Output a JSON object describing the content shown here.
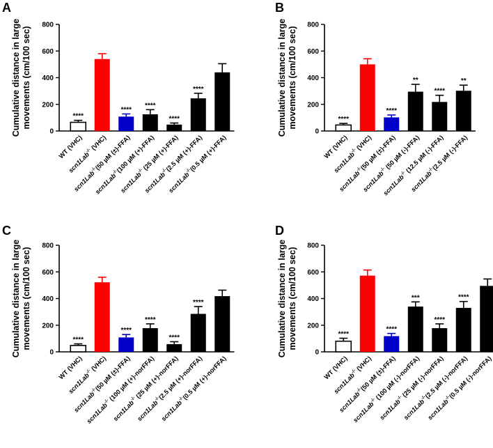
{
  "chart_data": [
    {
      "type": "bar",
      "panel": "A",
      "ylabel_lines": [
        "Cumulative distance in large",
        "movements (cm/100 sec)"
      ],
      "ylim": [
        0,
        800
      ],
      "yticks": [
        "0",
        "200",
        "400",
        "600",
        "800"
      ],
      "categories": [
        {
          "pre": "WT (VHC)",
          "it": "",
          "sup": "",
          "post": ""
        },
        {
          "pre": "",
          "it": "scn1Lab",
          "sup": "-/-",
          "post": " (VHC)"
        },
        {
          "pre": "",
          "it": "scn1Lab",
          "sup": "-/-",
          "post": "(50 µM (±)-FFA)"
        },
        {
          "pre": "",
          "it": "scn1Lab",
          "sup": "-/-",
          "post": "(100 µM (+)-FFA)"
        },
        {
          "pre": "",
          "it": "scn1Lab",
          "sup": "-/-",
          "post": " (25 µM (+)-FFA)"
        },
        {
          "pre": "",
          "it": "scn1Lab",
          "sup": "-/-",
          "post": "(2.5 µM (+)-FFA)"
        },
        {
          "pre": "",
          "it": "scn1Lab",
          "sup": "-/-",
          "post": "(0.5 µM (+)-FFA)"
        }
      ],
      "values": [
        65,
        540,
        108,
        125,
        48,
        245,
        440
      ],
      "errors": [
        15,
        40,
        20,
        35,
        12,
        38,
        65
      ],
      "significance": [
        "****",
        "",
        "****",
        "****",
        "****",
        "****",
        ""
      ],
      "colors": [
        "#ffffff",
        "#ff0000",
        "#0000c8",
        "#000000",
        "#000000",
        "#000000",
        "#000000"
      ]
    },
    {
      "type": "bar",
      "panel": "B",
      "ylabel_lines": [
        "Cumulative distance in large",
        "movements (cm/100 sec)"
      ],
      "ylim": [
        0,
        800
      ],
      "yticks": [
        "0",
        "200",
        "400",
        "600",
        "800"
      ],
      "categories": [
        {
          "pre": "WT (VHC)",
          "it": "",
          "sup": "",
          "post": ""
        },
        {
          "pre": "",
          "it": "scn1Lab",
          "sup": "-/-",
          "post": " (VHC)"
        },
        {
          "pre": "",
          "it": "scn1Lab",
          "sup": "-/-",
          "post": "(50 µM (±)-FFA)"
        },
        {
          "pre": "",
          "it": "scn1Lab",
          "sup": "-/-",
          "post": " (50 µM (-)-FFA)"
        },
        {
          "pre": "",
          "it": "scn1Lab",
          "sup": "-/-",
          "post": " (12.5 µM (-)-FFA)"
        },
        {
          "pre": "",
          "it": "scn1Lab",
          "sup": "-/-",
          "post": "(2.5 µM (-)-FFA)"
        }
      ],
      "values": [
        45,
        500,
        102,
        295,
        218,
        302
      ],
      "errors": [
        12,
        42,
        18,
        55,
        50,
        42
      ],
      "significance": [
        "****",
        "",
        "****",
        "**",
        "****",
        "**"
      ],
      "colors": [
        "#ffffff",
        "#ff0000",
        "#0000c8",
        "#000000",
        "#000000",
        "#000000"
      ]
    },
    {
      "type": "bar",
      "panel": "C",
      "ylabel_lines": [
        "Cumulative distance in large",
        "movements (cm/100 sec)"
      ],
      "ylim": [
        0,
        800
      ],
      "yticks": [
        "0",
        "200",
        "400",
        "600",
        "800"
      ],
      "categories": [
        {
          "pre": "WT (VHC)",
          "it": "",
          "sup": "",
          "post": ""
        },
        {
          "pre": "",
          "it": "scn1Lab",
          "sup": "-/-",
          "post": " (VHC)"
        },
        {
          "pre": "",
          "it": "scn1Lab",
          "sup": "-/-",
          "post": "(50 µM (±)-FFA)"
        },
        {
          "pre": "",
          "it": "scn1Lab",
          "sup": "-/-",
          "post": " (100 µM (+)-norFFA)"
        },
        {
          "pre": "",
          "it": "scn1Lab",
          "sup": "-/-",
          "post": " (25 µM (+)-norFFA)"
        },
        {
          "pre": "",
          "it": "scn1Lab",
          "sup": "-/-",
          "post": "(2.5 µM (+)-norFFA)"
        },
        {
          "pre": "",
          "it": "scn1Lab",
          "sup": "-/-",
          "post": "(0.5 µM (+)-norFFA)"
        }
      ],
      "values": [
        48,
        522,
        108,
        178,
        58,
        285,
        418
      ],
      "errors": [
        12,
        38,
        22,
        32,
        18,
        55,
        45
      ],
      "significance": [
        "****",
        "",
        "****",
        "****",
        "****",
        "****",
        ""
      ],
      "colors": [
        "#ffffff",
        "#ff0000",
        "#0000c8",
        "#000000",
        "#000000",
        "#000000",
        "#000000"
      ]
    },
    {
      "type": "bar",
      "panel": "D",
      "ylabel_lines": [
        "Cumulative distance in large",
        "movements (cm/100 sec)"
      ],
      "ylim": [
        0,
        800
      ],
      "yticks": [
        "0",
        "200",
        "400",
        "600",
        "800"
      ],
      "categories": [
        {
          "pre": "WT (VHC)",
          "it": "",
          "sup": "",
          "post": ""
        },
        {
          "pre": "",
          "it": "scn1Lab",
          "sup": "-/-",
          "post": " (VHC)"
        },
        {
          "pre": "",
          "it": "scn1Lab",
          "sup": "-/-",
          "post": "(50 µM (±)-FFA)"
        },
        {
          "pre": "",
          "it": "scn1Lab",
          "sup": "-/-",
          "post": " (100 µM (-)-norFFA)"
        },
        {
          "pre": "",
          "it": "scn1Lab",
          "sup": "-/-",
          "post": " (25 µM (-)-norFFA)"
        },
        {
          "pre": "",
          "it": "scn1Lab",
          "sup": "-/-",
          "post": "(2.5 µM (-)-norFFA)"
        },
        {
          "pre": "",
          "it": "scn1Lab",
          "sup": "-/-",
          "post": "(0.5 µM (-)-norFFA)"
        }
      ],
      "values": [
        80,
        572,
        118,
        340,
        178,
        330,
        495
      ],
      "errors": [
        22,
        42,
        20,
        35,
        32,
        48,
        52
      ],
      "significance": [
        "****",
        "",
        "****",
        "***",
        "****",
        "****",
        ""
      ],
      "colors": [
        "#ffffff",
        "#ff0000",
        "#0000c8",
        "#000000",
        "#000000",
        "#000000",
        "#000000"
      ]
    }
  ]
}
